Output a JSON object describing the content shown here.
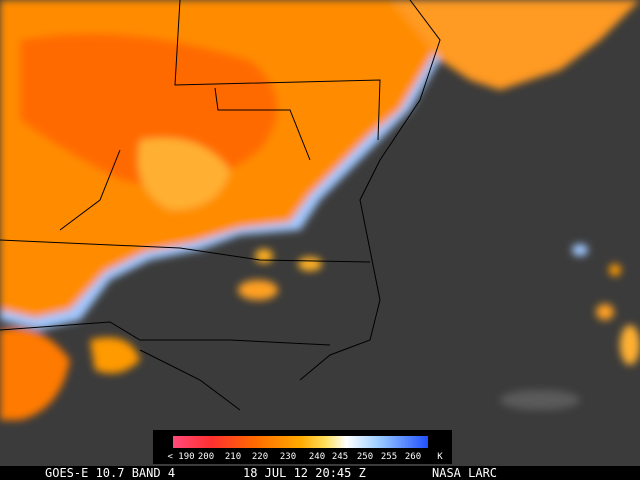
{
  "colorbar": {
    "labels": [
      "< 190",
      "200",
      "210",
      "220",
      "230",
      "240",
      "245",
      "250",
      "255",
      "260"
    ],
    "unit": "K"
  },
  "footer": {
    "product": "GOES-E 10.7 BAND 4",
    "timestamp": "18 JUL 12 20:45 Z",
    "source": "NASA LARC"
  }
}
